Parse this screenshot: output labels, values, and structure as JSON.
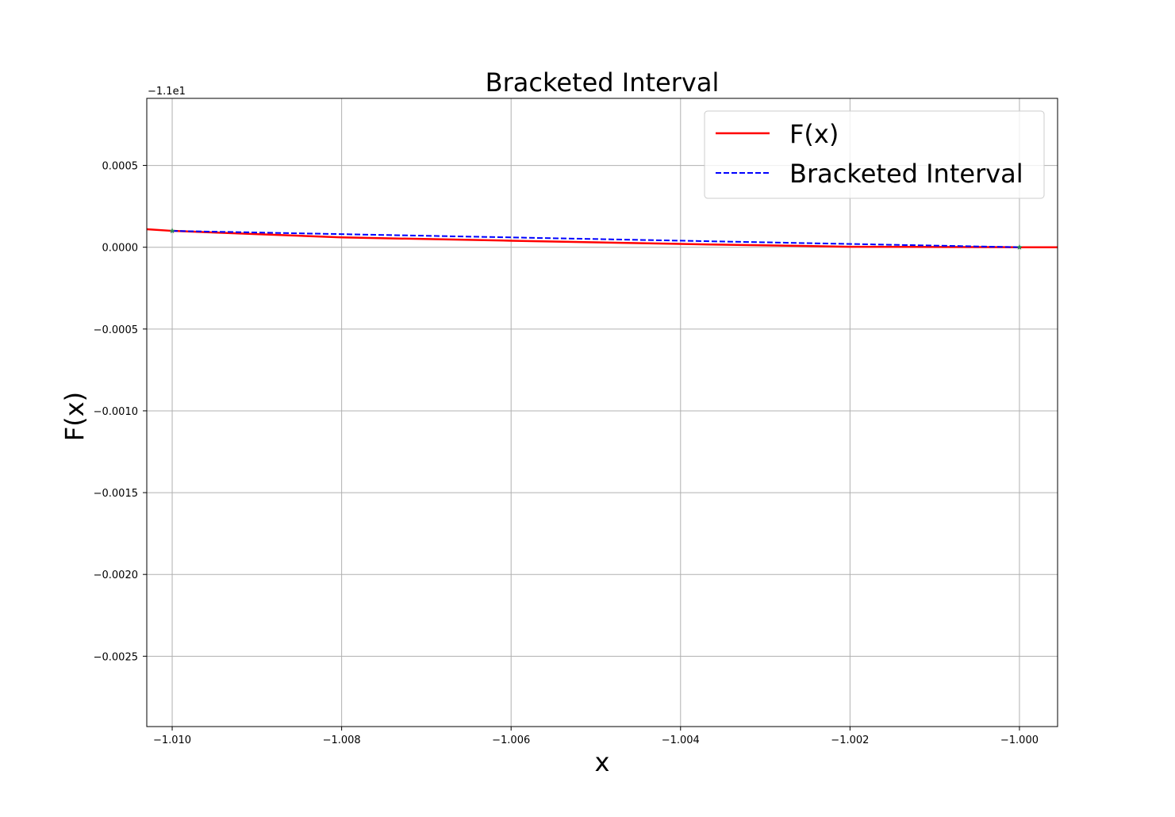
{
  "chart_data": {
    "type": "line",
    "title": "Bracketed Interval",
    "xlabel": "x",
    "ylabel": "F(x)",
    "y_offset_label": "−1.1e1",
    "y_offset": -11,
    "xlim": [
      -1.0103,
      -0.99955
    ],
    "ylim": [
      -0.00293,
      0.00091
    ],
    "x_ticks": [
      -1.01,
      -1.008,
      -1.006,
      -1.004,
      -1.002,
      -1.0
    ],
    "x_tick_labels": [
      "−1.010",
      "−1.008",
      "−1.006",
      "−1.004",
      "−1.002",
      "−1.000"
    ],
    "y_ticks": [
      0.0005,
      0.0,
      -0.0005,
      -0.001,
      -0.0015,
      -0.002,
      -0.0025
    ],
    "y_tick_labels": [
      "0.0005",
      "0.0000",
      "−0.0005",
      "−0.0010",
      "−0.0015",
      "−0.0020",
      "−0.0025"
    ],
    "grid": true,
    "legend_position": "top-right",
    "series": [
      {
        "name": "F(x)",
        "style": "solid",
        "color": "#ff0000",
        "x": [
          -1.0103,
          -1.01,
          -1.008,
          -1.006,
          -1.004,
          -1.002,
          -1.0,
          -0.99955
        ],
        "y": [
          0.00011,
          0.0001,
          6e-05,
          4e-05,
          2e-05,
          3e-06,
          0.0,
          0.0
        ]
      },
      {
        "name": "Bracketed Interval",
        "style": "dashed",
        "color": "#0000ff",
        "x": [
          -1.01,
          -1.0
        ],
        "y": [
          0.0001,
          0.0
        ]
      }
    ],
    "markers": {
      "color": "#2e8b57",
      "symbol": "star",
      "x": [
        -1.01,
        -1.0
      ],
      "y": [
        0.0001,
        0.0
      ]
    }
  }
}
